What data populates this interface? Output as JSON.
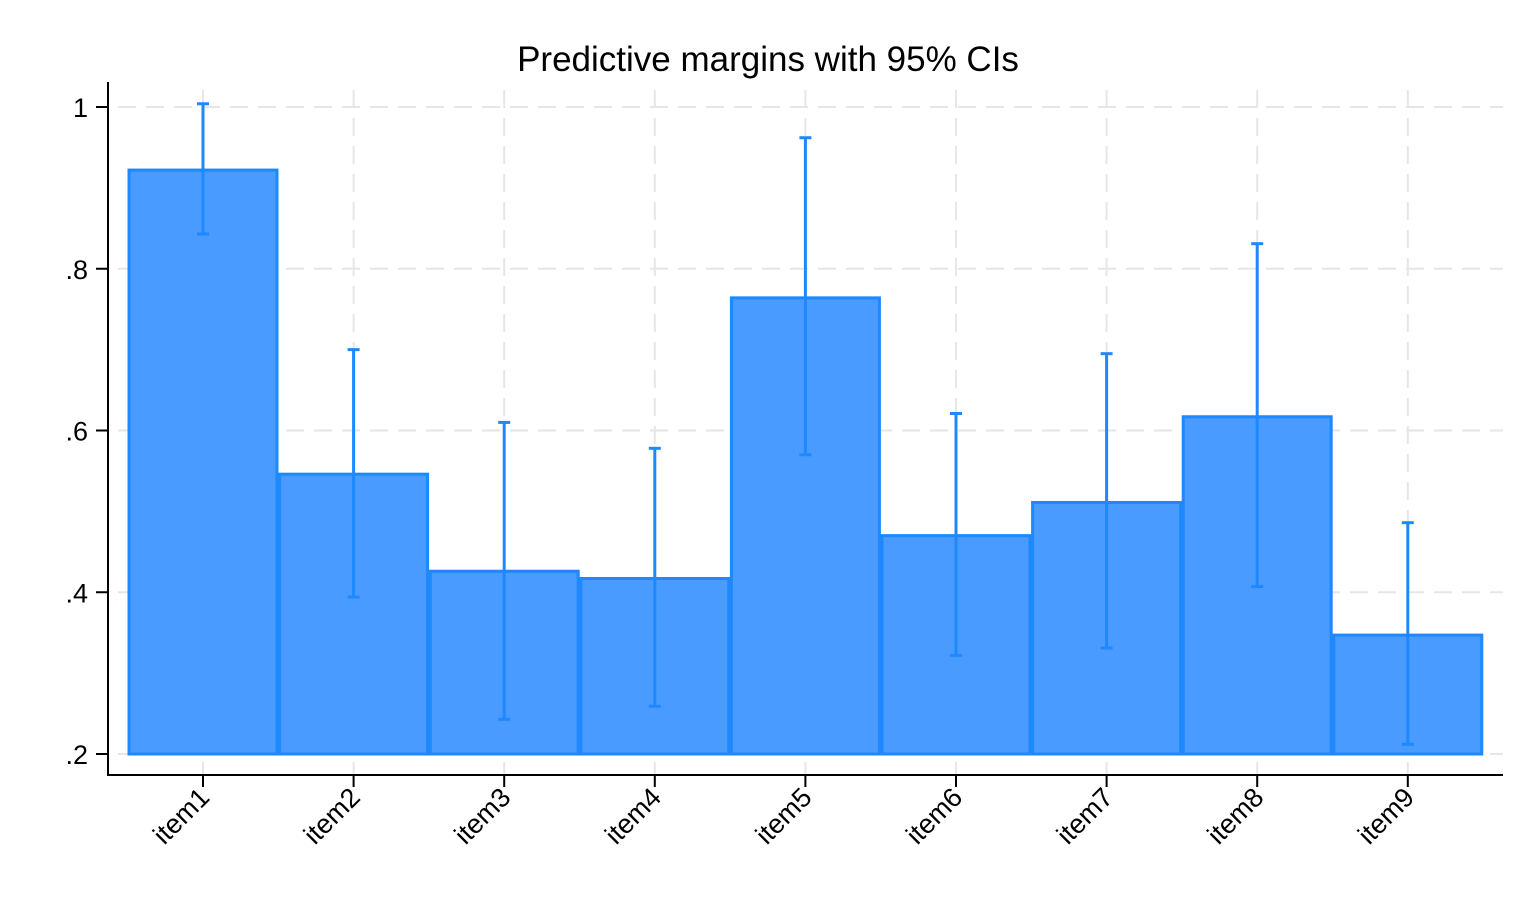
{
  "chart_data": {
    "type": "bar",
    "title": "Predictive margins with 95% CIs",
    "xlabel": "",
    "ylabel": "",
    "categories": [
      "item1",
      "item2",
      "item3",
      "item4",
      "item5",
      "item6",
      "item7",
      "item8",
      "item9"
    ],
    "values": [
      0.922,
      0.546,
      0.426,
      0.417,
      0.764,
      0.47,
      0.511,
      0.617,
      0.347
    ],
    "ci_lower": [
      0.843,
      0.394,
      0.243,
      0.259,
      0.57,
      0.322,
      0.331,
      0.407,
      0.212
    ],
    "ci_upper": [
      1.004,
      0.7,
      0.61,
      0.578,
      0.962,
      0.621,
      0.695,
      0.831,
      0.486
    ],
    "bar_base": 0.2,
    "ylim": [
      0.2,
      1.0
    ],
    "yticks": [
      0.2,
      0.4,
      0.6,
      0.8,
      1.0
    ],
    "ytick_labels": [
      ".2",
      ".4",
      ".6",
      ".8",
      "1"
    ],
    "grid": true,
    "grid_style": "dashed",
    "legend": null,
    "xtick_rotation": 45
  },
  "colors": {
    "bar_fill": "#4a9bff",
    "bar_edge": "#1e88ff",
    "ci_line": "#1e88ff",
    "grid": "#e6e6e6",
    "axis": "#000000"
  }
}
